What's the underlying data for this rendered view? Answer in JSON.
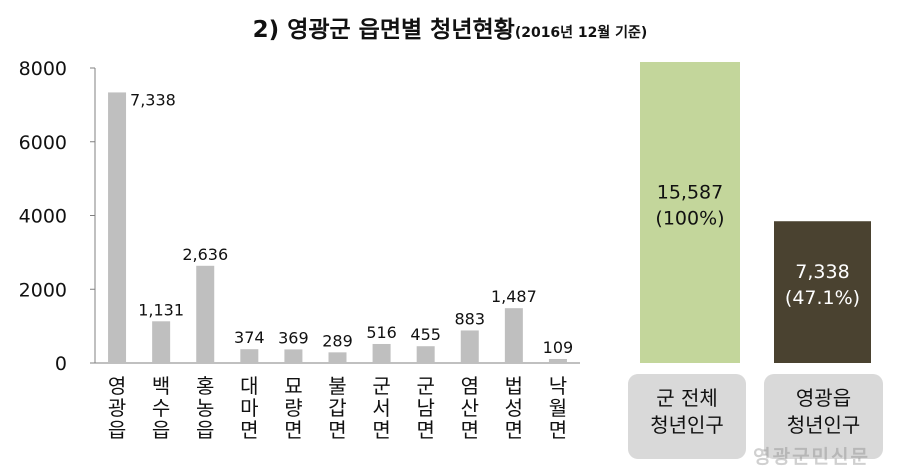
{
  "title": {
    "main": "2) 영광군 읍면별 청년현황",
    "sub": "(2016년 12월 기준)"
  },
  "watermark": "영광군민신문",
  "colors": {
    "bar": "#bfbfbf",
    "total": "#c3d69b",
    "yeonggwang": "#4a4230",
    "label_box": "#d9d9d9"
  },
  "chart_data": [
    {
      "type": "bar",
      "categories": [
        "영광읍",
        "백수읍",
        "홍농읍",
        "대마면",
        "묘량면",
        "불갑면",
        "군서면",
        "군남면",
        "염산면",
        "법성면",
        "낙월면"
      ],
      "values": [
        7338,
        1131,
        2636,
        374,
        369,
        289,
        516,
        455,
        883,
        1487,
        109
      ],
      "value_labels": [
        "7,338",
        "1,131",
        "2,636",
        "374",
        "369",
        "289",
        "516",
        "455",
        "883",
        "1,487",
        "109"
      ],
      "yticks": [
        "0",
        "2000",
        "4000",
        "6000",
        "8000"
      ],
      "ylim": [
        0,
        8000
      ],
      "grid": false
    },
    {
      "type": "bar",
      "categories": [
        "군 전체\n청년인구",
        "영광읍\n청년인구"
      ],
      "values": [
        15587,
        7338
      ],
      "value_labels": [
        "15,587\n(100%)",
        "7,338\n(47.1%)"
      ],
      "percent": [
        100,
        47.1
      ],
      "grid": false
    }
  ]
}
